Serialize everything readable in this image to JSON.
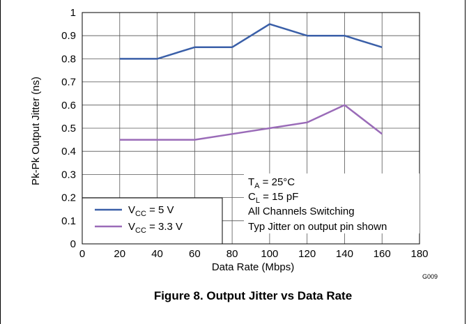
{
  "chart_data": {
    "type": "line",
    "title": "",
    "xlabel": "Data Rate (Mbps)",
    "ylabel": "Pk-Pk Output Jitter (ns)",
    "xlim": [
      0,
      180
    ],
    "ylim": [
      0,
      1
    ],
    "x_ticks": [
      "0",
      "20",
      "40",
      "60",
      "80",
      "100",
      "120",
      "140",
      "160",
      "180"
    ],
    "y_ticks": [
      "0",
      "0.1",
      "0.2",
      "0.3",
      "0.4",
      "0.5",
      "0.6",
      "0.7",
      "0.8",
      "0.9",
      "1"
    ],
    "grid": true,
    "legend_position": "bottom-left",
    "series": [
      {
        "name_main": "V",
        "name_sub": "CC",
        "name_rest": " = 5 V",
        "color": "#3a5fa8",
        "x": [
          20,
          40,
          60,
          80,
          100,
          120,
          140,
          160
        ],
        "y": [
          0.8,
          0.8,
          0.85,
          0.85,
          0.95,
          0.9,
          0.9,
          0.85
        ]
      },
      {
        "name_main": "V",
        "name_sub": "CC",
        "name_rest": " = 3.3 V",
        "color": "#9a6bb8",
        "x": [
          20,
          40,
          60,
          80,
          100,
          120,
          140,
          160
        ],
        "y": [
          0.45,
          0.45,
          0.45,
          0.475,
          0.5,
          0.525,
          0.6,
          0.475
        ]
      }
    ],
    "annotations": {
      "ta_main": "T",
      "ta_sub": "A",
      "ta_rest": " = 25°C",
      "cl_main": "C",
      "cl_sub": "L",
      "cl_rest": " = 15 pF",
      "line3": "All Channels Switching",
      "line4": "Typ Jitter on output pin shown"
    }
  },
  "figure_code": "G009",
  "caption": "Figure 8. Output Jitter vs Data Rate"
}
